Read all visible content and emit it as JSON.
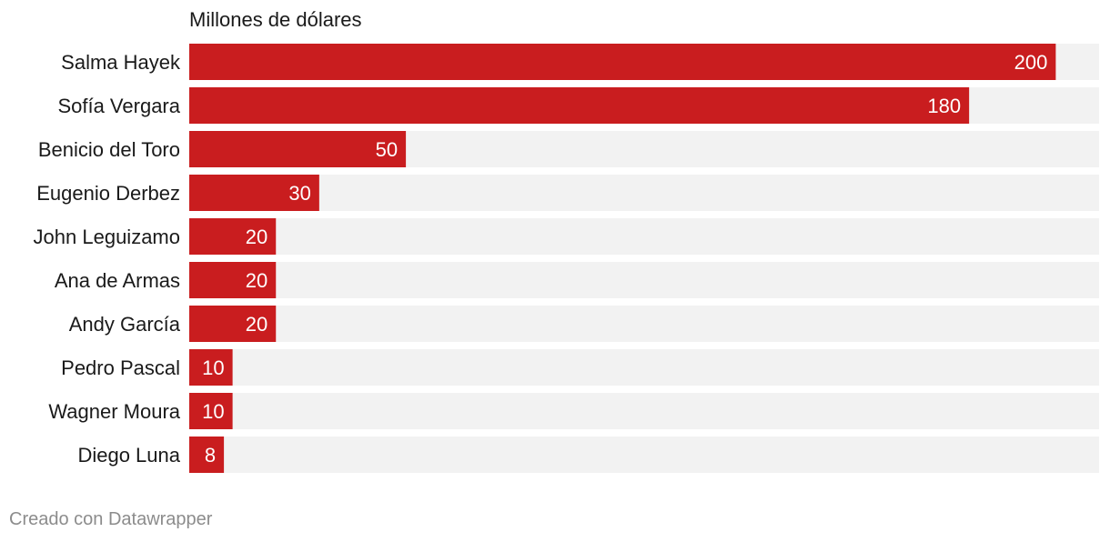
{
  "chart_data": {
    "type": "bar",
    "orientation": "horizontal",
    "title": "",
    "unit_label": "Millones de dólares",
    "categories": [
      "Salma Hayek",
      "Sofía Vergara",
      "Benicio del Toro",
      "Eugenio Derbez",
      "John Leguizamo",
      "Ana de Armas",
      "Andy García",
      "Pedro Pascal",
      "Wagner Moura",
      "Diego Luna"
    ],
    "values": [
      200,
      180,
      50,
      30,
      20,
      20,
      20,
      10,
      10,
      8
    ],
    "value_labels": [
      "200",
      "180",
      "50",
      "30",
      "20",
      "20",
      "20",
      "10",
      "10",
      "8"
    ],
    "xlim": [
      0,
      210
    ],
    "grid": false,
    "bar_color": "#c91d1f",
    "track_color": "#f2f2f2"
  },
  "footer": {
    "credit": "Creado con Datawrapper"
  }
}
